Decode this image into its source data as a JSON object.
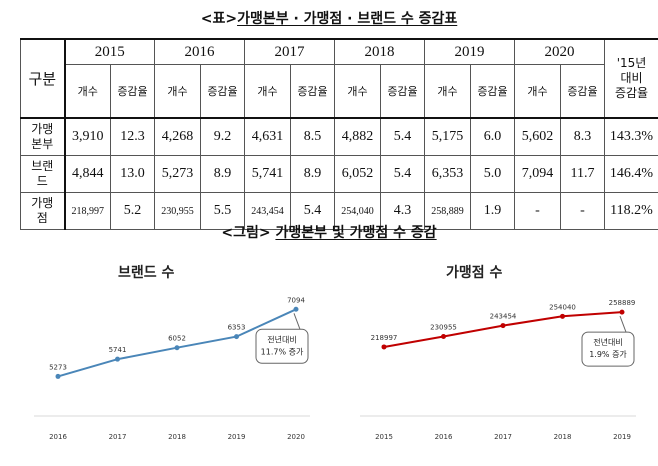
{
  "table_heading": {
    "prefix": "<표>",
    "title": "가맹본부 · 가맹점 · 브랜드 수 증감표"
  },
  "table": {
    "corner": "구분",
    "years": [
      "2015",
      "2016",
      "2017",
      "2018",
      "2019",
      "2020"
    ],
    "sub_count": "개수",
    "sub_rate": "증감율",
    "last_col": [
      "'15년",
      "대비",
      "증감율"
    ],
    "rows": [
      {
        "label": [
          "가맹",
          "본부"
        ],
        "values": [
          "3,910",
          "12.3",
          "4,268",
          "9.2",
          "4,631",
          "8.5",
          "4,882",
          "5.4",
          "5,175",
          "6.0",
          "5,602",
          "8.3"
        ],
        "total": "143.3%"
      },
      {
        "label": [
          "브랜",
          "드"
        ],
        "values": [
          "4,844",
          "13.0",
          "5,273",
          "8.9",
          "5,741",
          "8.9",
          "6,052",
          "5.4",
          "6,353",
          "5.0",
          "7,094",
          "11.7"
        ],
        "total": "146.4%"
      },
      {
        "label": [
          "가맹",
          "점"
        ],
        "values": [
          "218,997",
          "5.2",
          "230,955",
          "5.5",
          "243,454",
          "5.4",
          "254,040",
          "4.3",
          "258,889",
          "1.9",
          "-",
          "-"
        ],
        "total": "118.2%"
      }
    ]
  },
  "figure_heading": {
    "prefix": "<그림>",
    "title": "가맹본부 및 가맹점 수 증감"
  },
  "chart_data": [
    {
      "type": "line",
      "title": "브랜드 수",
      "categories": [
        "2016",
        "2017",
        "2018",
        "2019",
        "2020"
      ],
      "values": [
        5273,
        5741,
        6052,
        6353,
        7094
      ],
      "value_labels": [
        "5273",
        "5741",
        "6052",
        "6353",
        "7094"
      ],
      "color": "#4a86b8",
      "ylim": [
        4200,
        7400
      ],
      "callout": [
        "전년대비",
        "11.7% 증가"
      ]
    },
    {
      "type": "line",
      "title": "가맹점 수",
      "categories": [
        "2015",
        "2016",
        "2017",
        "2018",
        "2019"
      ],
      "values": [
        218997,
        230955,
        243454,
        254040,
        258889
      ],
      "value_labels": [
        "218997",
        "230955",
        "243454",
        "254040",
        "258889"
      ],
      "color": "#c00000",
      "ylim": [
        140000,
        275000
      ],
      "callout": [
        "전년대비",
        "1.9% 증가"
      ]
    }
  ]
}
